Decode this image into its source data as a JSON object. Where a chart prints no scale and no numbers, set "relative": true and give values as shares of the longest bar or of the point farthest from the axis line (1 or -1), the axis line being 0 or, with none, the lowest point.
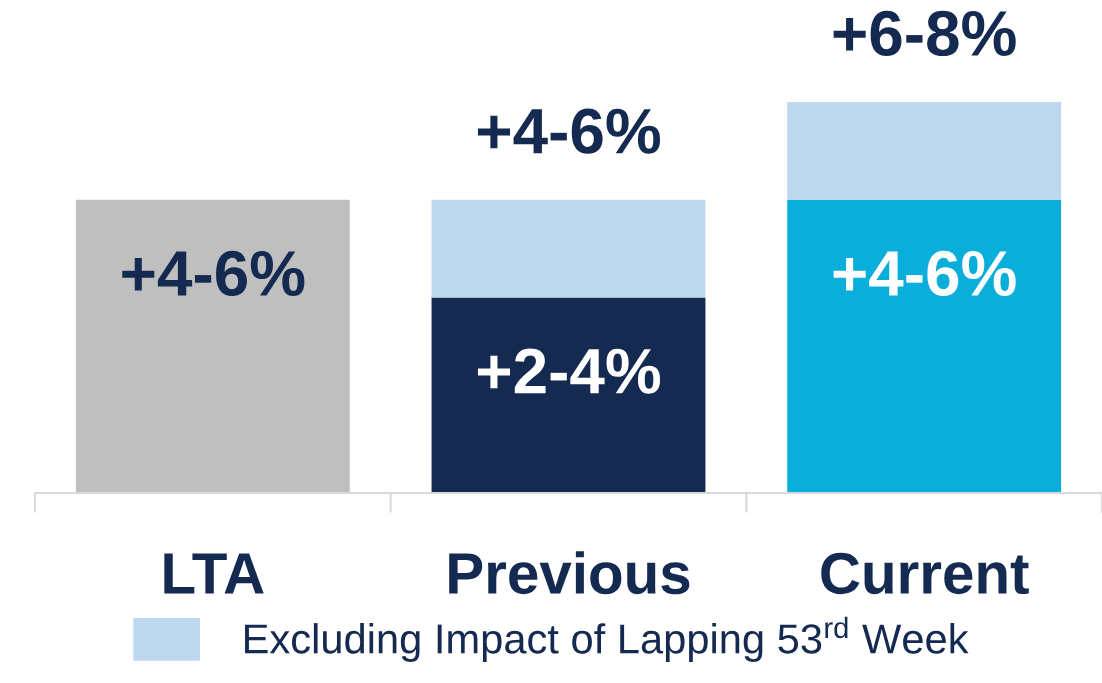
{
  "chart_data": {
    "type": "bar",
    "stacked": true,
    "relative": true,
    "legend": "bottom",
    "categories": [
      "LTA",
      "Previous",
      "Current"
    ],
    "series": [
      {
        "colors": [
          "#bfbfbf",
          "#142a50",
          "#0aaedb"
        ],
        "values": [
          0.75,
          0.5,
          0.75
        ]
      },
      {
        "name": "Excluding Impact of Lapping 53$^{rd}$ Week",
        "color": "#bdd7ee",
        "values": [
          null,
          0.25,
          0.25
        ]
      }
    ],
    "annotations": [
      {
        "text": "+4-6%",
        "x": "LTA",
        "y": 0.75
      },
      {
        "text": "+2-4%",
        "x": "Previous",
        "y": 0.5
      },
      {
        "text": "+4-6%",
        "x": "Current",
        "y": 0.75
      }
    ],
    "totals": [
      null,
      "+4-6%",
      "+6-8%"
    ]
  }
}
